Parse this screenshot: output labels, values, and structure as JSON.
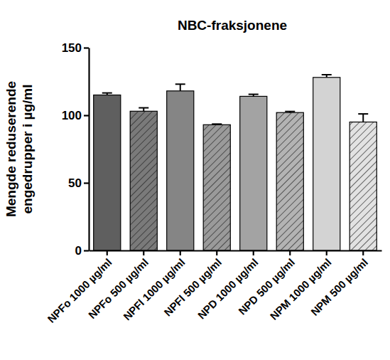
{
  "chart_data": {
    "type": "bar",
    "title": "NBC-fraksjonene",
    "y_label": [
      "Mengde reduserende",
      "engedrupper i µg/ml"
    ],
    "categories": [
      "NPFo 1000 µg/ml",
      "NPFo 500 µg/ml",
      "NPFl 1000 µg/ml",
      "NPFl 500 µg/ml",
      "NPD 1000 µg/ml",
      "NPD 500 µg/ml",
      "NPM 1000 µg/ml",
      "NPM 500 µg/ml"
    ],
    "values": [
      115,
      103,
      118,
      93,
      114,
      102,
      128,
      95
    ],
    "errors": [
      1.5,
      2.5,
      5,
      0.5,
      1.5,
      0.8,
      2,
      6
    ],
    "colors": [
      "#5f5f5f",
      "#7a7a7a",
      "#858585",
      "#9a9a9a",
      "#a3a3a3",
      "#b3b3b3",
      "#d3d3d3",
      "#e2e2e2"
    ],
    "ylim": [
      0,
      150
    ],
    "yticks": [
      0,
      50,
      100,
      150
    ],
    "grid": false
  }
}
